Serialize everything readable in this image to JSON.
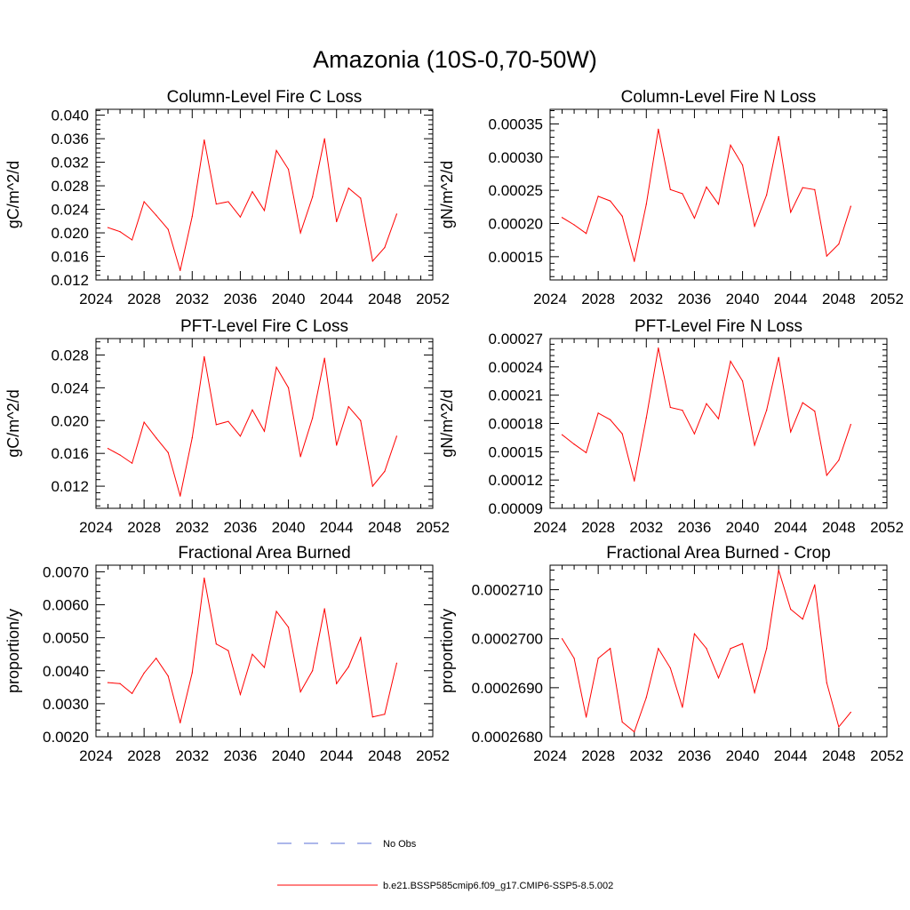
{
  "title": "Amazonia (10S-0,70-50W)",
  "legend": {
    "items": [
      {
        "label": "No Obs",
        "color": "#5a6fd6",
        "style": "dashed"
      },
      {
        "label": "b.e21.BSSP585cmip6.f09_g17.CMIP6-SSP5-8.5.002",
        "color": "#ff0000",
        "style": "solid"
      }
    ]
  },
  "chart_data": [
    {
      "type": "line",
      "title": "Column-Level Fire C Loss",
      "xlabel": "",
      "ylabel": "gC/m^2/d",
      "xlim": [
        2024,
        2052
      ],
      "ylim": [
        0.012,
        0.041
      ],
      "xticks": [
        "2024",
        "2028",
        "2032",
        "2036",
        "2040",
        "2044",
        "2048",
        "2052"
      ],
      "yticks": [
        "0.012",
        "0.016",
        "0.020",
        "0.024",
        "0.028",
        "0.032",
        "0.036",
        "0.040"
      ],
      "x": [
        2025,
        2026,
        2027,
        2028,
        2029,
        2030,
        2031,
        2032,
        2033,
        2034,
        2035,
        2036,
        2037,
        2038,
        2039,
        2040,
        2041,
        2042,
        2043,
        2044,
        2045,
        2046,
        2047,
        2048,
        2049
      ],
      "series": [
        {
          "color": "#ff0000",
          "values": [
            0.0209,
            0.0202,
            0.0188,
            0.0253,
            0.023,
            0.0206,
            0.0136,
            0.0228,
            0.0358,
            0.0249,
            0.0253,
            0.0227,
            0.027,
            0.0238,
            0.034,
            0.0308,
            0.02,
            0.0261,
            0.036,
            0.0219,
            0.0276,
            0.0259,
            0.0152,
            0.0175,
            0.0232
          ]
        }
      ]
    },
    {
      "type": "line",
      "title": "Column-Level Fire N Loss",
      "xlabel": "",
      "ylabel": "gN/m^2/d",
      "xlim": [
        2024,
        2052
      ],
      "ylim": [
        0.000115,
        0.000372
      ],
      "xticks": [
        "2024",
        "2028",
        "2032",
        "2036",
        "2040",
        "2044",
        "2048",
        "2052"
      ],
      "yticks": [
        "0.00015",
        "0.00020",
        "0.00025",
        "0.00030",
        "0.00035"
      ],
      "x": [
        2025,
        2026,
        2027,
        2028,
        2029,
        2030,
        2031,
        2032,
        2033,
        2034,
        2035,
        2036,
        2037,
        2038,
        2039,
        2040,
        2041,
        2042,
        2043,
        2044,
        2045,
        2046,
        2047,
        2048,
        2049
      ],
      "series": [
        {
          "color": "#ff0000",
          "values": [
            0.000209,
            0.000198,
            0.000185,
            0.000241,
            0.000234,
            0.000211,
            0.000143,
            0.000229,
            0.000342,
            0.000251,
            0.000245,
            0.000208,
            0.000255,
            0.000229,
            0.000318,
            0.000288,
            0.000196,
            0.000243,
            0.000331,
            0.000217,
            0.000254,
            0.000251,
            0.000151,
            0.000169,
            0.000226
          ]
        }
      ]
    },
    {
      "type": "line",
      "title": "PFT-Level Fire C Loss",
      "xlabel": "",
      "ylabel": "gC/m^2/d",
      "xlim": [
        2024,
        2052
      ],
      "ylim": [
        0.0093,
        0.03
      ],
      "xticks": [
        "2024",
        "2028",
        "2032",
        "2036",
        "2040",
        "2044",
        "2048",
        "2052"
      ],
      "yticks": [
        "0.012",
        "0.016",
        "0.020",
        "0.024",
        "0.028"
      ],
      "x": [
        2025,
        2026,
        2027,
        2028,
        2029,
        2030,
        2031,
        2032,
        2033,
        2034,
        2035,
        2036,
        2037,
        2038,
        2039,
        2040,
        2041,
        2042,
        2043,
        2044,
        2045,
        2046,
        2047,
        2048,
        2049
      ],
      "series": [
        {
          "color": "#ff0000",
          "values": [
            0.0166,
            0.0158,
            0.0148,
            0.0198,
            0.0179,
            0.0161,
            0.0108,
            0.0179,
            0.0278,
            0.0195,
            0.0199,
            0.0181,
            0.0213,
            0.0187,
            0.0265,
            0.024,
            0.0156,
            0.0203,
            0.0276,
            0.017,
            0.0217,
            0.02,
            0.012,
            0.0138,
            0.0181
          ]
        }
      ]
    },
    {
      "type": "line",
      "title": "PFT-Level Fire N Loss",
      "xlabel": "",
      "ylabel": "gN/m^2/d",
      "xlim": [
        2024,
        2052
      ],
      "ylim": [
        9e-05,
        0.00027
      ],
      "xticks": [
        "2024",
        "2028",
        "2032",
        "2036",
        "2040",
        "2044",
        "2048",
        "2052"
      ],
      "yticks": [
        "0.00009",
        "0.00012",
        "0.00015",
        "0.00018",
        "0.00021",
        "0.00024",
        "0.00027"
      ],
      "x": [
        2025,
        2026,
        2027,
        2028,
        2029,
        2030,
        2031,
        2032,
        2033,
        2034,
        2035,
        2036,
        2037,
        2038,
        2039,
        2040,
        2041,
        2042,
        2043,
        2044,
        2045,
        2046,
        2047,
        2048,
        2049
      ],
      "series": [
        {
          "color": "#ff0000",
          "values": [
            0.000168,
            0.000158,
            0.000149,
            0.000191,
            0.000184,
            0.000169,
            0.000119,
            0.000186,
            0.00026,
            0.000197,
            0.000194,
            0.000169,
            0.000201,
            0.000185,
            0.000246,
            0.000225,
            0.000157,
            0.000194,
            0.00025,
            0.000171,
            0.000202,
            0.000193,
            0.000125,
            0.000141,
            0.000179
          ]
        }
      ]
    },
    {
      "type": "line",
      "title": "Fractional Area Burned",
      "xlabel": "",
      "ylabel": "proportion/y",
      "xlim": [
        2024,
        2052
      ],
      "ylim": [
        0.002,
        0.0072
      ],
      "xticks": [
        "2024",
        "2028",
        "2032",
        "2036",
        "2040",
        "2044",
        "2048",
        "2052"
      ],
      "yticks": [
        "0.0020",
        "0.0030",
        "0.0040",
        "0.0050",
        "0.0060",
        "0.0070"
      ],
      "x": [
        2025,
        2026,
        2027,
        2028,
        2029,
        2030,
        2031,
        2032,
        2033,
        2034,
        2035,
        2036,
        2037,
        2038,
        2039,
        2040,
        2041,
        2042,
        2043,
        2044,
        2045,
        2046,
        2047,
        2048,
        2049
      ],
      "series": [
        {
          "color": "#ff0000",
          "values": [
            0.00364,
            0.00361,
            0.00331,
            0.00393,
            0.00438,
            0.00384,
            0.00242,
            0.00394,
            0.00681,
            0.00481,
            0.00461,
            0.00328,
            0.0045,
            0.0041,
            0.0058,
            0.00532,
            0.00336,
            0.004,
            0.00588,
            0.00361,
            0.00412,
            0.005,
            0.0026,
            0.00268,
            0.00423
          ]
        }
      ]
    },
    {
      "type": "line",
      "title": "Fractional Area Burned - Crop",
      "xlabel": "",
      "ylabel": "proportion/y",
      "xlim": [
        2024,
        2052
      ],
      "ylim": [
        0.000268,
        0.0002715
      ],
      "xticks": [
        "2024",
        "2028",
        "2032",
        "2036",
        "2040",
        "2044",
        "2048",
        "2052"
      ],
      "yticks": [
        "0.0002680",
        "0.0002690",
        "0.0002700",
        "0.0002710"
      ],
      "x": [
        2025,
        2026,
        2027,
        2028,
        2029,
        2030,
        2031,
        2032,
        2033,
        2034,
        2035,
        2036,
        2037,
        2038,
        2039,
        2040,
        2041,
        2042,
        2043,
        2044,
        2045,
        2046,
        2047,
        2048,
        2049
      ],
      "series": [
        {
          "color": "#ff0000",
          "values": [
            0.00027,
            0.0002696,
            0.0002684,
            0.0002696,
            0.0002698,
            0.0002683,
            0.0002681,
            0.0002688,
            0.0002698,
            0.0002694,
            0.0002686,
            0.0002701,
            0.0002698,
            0.0002692,
            0.0002698,
            0.0002699,
            0.0002689,
            0.0002698,
            0.0002714,
            0.0002706,
            0.0002704,
            0.0002711,
            0.0002691,
            0.0002682,
            0.0002685
          ]
        }
      ]
    }
  ]
}
